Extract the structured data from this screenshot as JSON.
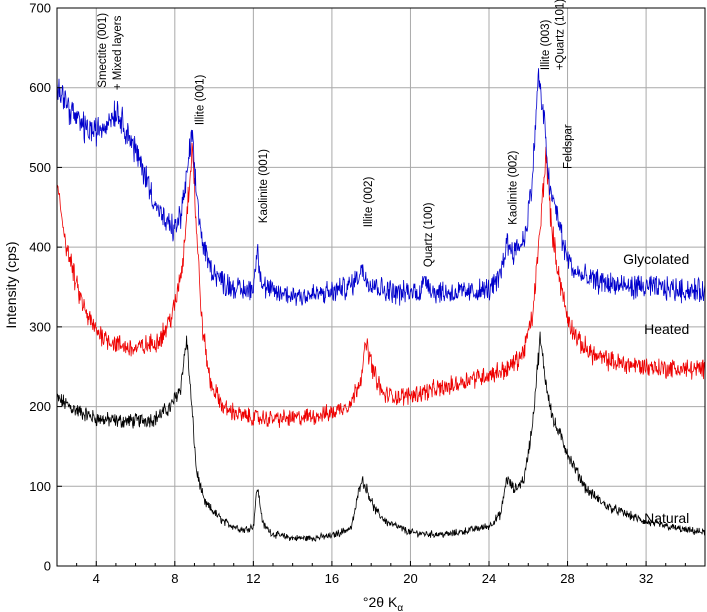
{
  "chart_data": {
    "type": "line",
    "title": "",
    "xlabel_main": "°2θ K",
    "xlabel_sub": "α",
    "ylabel": "Intensity (cps)",
    "xlim": [
      2,
      35
    ],
    "ylim": [
      0,
      700
    ],
    "xticks": [
      4,
      8,
      12,
      16,
      20,
      24,
      28,
      32
    ],
    "yticks": [
      0,
      100,
      200,
      300,
      400,
      500,
      600,
      700
    ],
    "grid": true,
    "series": [
      {
        "name": "Glycolated",
        "color": "#0000cc",
        "noise": 9,
        "points": [
          [
            2,
            610
          ],
          [
            2.5,
            580
          ],
          [
            3,
            560
          ],
          [
            3.5,
            548
          ],
          [
            4,
            545
          ],
          [
            4.5,
            555
          ],
          [
            5,
            572
          ],
          [
            5.4,
            555
          ],
          [
            6,
            520
          ],
          [
            6.5,
            490
          ],
          [
            7,
            455
          ],
          [
            7.5,
            430
          ],
          [
            8,
            422
          ],
          [
            8.3,
            440
          ],
          [
            8.6,
            485
          ],
          [
            8.85,
            540
          ],
          [
            9.1,
            470
          ],
          [
            9.4,
            405
          ],
          [
            9.8,
            375
          ],
          [
            10.5,
            355
          ],
          [
            11.5,
            345
          ],
          [
            12,
            350
          ],
          [
            12.2,
            398
          ],
          [
            12.45,
            352
          ],
          [
            13,
            343
          ],
          [
            14,
            340
          ],
          [
            15,
            340
          ],
          [
            16,
            343
          ],
          [
            16.5,
            348
          ],
          [
            17,
            352
          ],
          [
            17.5,
            372
          ],
          [
            17.8,
            360
          ],
          [
            18.5,
            348
          ],
          [
            19.5,
            342
          ],
          [
            20.5,
            345
          ],
          [
            20.8,
            362
          ],
          [
            21.1,
            345
          ],
          [
            22,
            343
          ],
          [
            23,
            343
          ],
          [
            24,
            347
          ],
          [
            24.5,
            358
          ],
          [
            24.9,
            405
          ],
          [
            25.3,
            395
          ],
          [
            25.8,
            410
          ],
          [
            26.2,
            480
          ],
          [
            26.5,
            615
          ],
          [
            26.8,
            560
          ],
          [
            27.1,
            470
          ],
          [
            27.5,
            440
          ],
          [
            27.8,
            400
          ],
          [
            28.3,
            370
          ],
          [
            29,
            360
          ],
          [
            30,
            355
          ],
          [
            31,
            350
          ],
          [
            32,
            350
          ],
          [
            33,
            348
          ],
          [
            34,
            346
          ],
          [
            35,
            345
          ]
        ]
      },
      {
        "name": "Heated",
        "color": "#ee0000",
        "noise": 9,
        "points": [
          [
            2,
            475
          ],
          [
            2.5,
            400
          ],
          [
            3,
            350
          ],
          [
            3.5,
            315
          ],
          [
            4,
            295
          ],
          [
            5,
            278
          ],
          [
            6,
            272
          ],
          [
            7,
            280
          ],
          [
            7.5,
            295
          ],
          [
            8,
            325
          ],
          [
            8.4,
            380
          ],
          [
            8.7,
            470
          ],
          [
            8.9,
            530
          ],
          [
            9.1,
            420
          ],
          [
            9.4,
            300
          ],
          [
            9.8,
            230
          ],
          [
            10.5,
            198
          ],
          [
            11.5,
            188
          ],
          [
            12.5,
            185
          ],
          [
            14,
            185
          ],
          [
            15,
            188
          ],
          [
            16,
            192
          ],
          [
            17,
            205
          ],
          [
            17.5,
            240
          ],
          [
            17.75,
            280
          ],
          [
            18.1,
            245
          ],
          [
            18.6,
            215
          ],
          [
            19.5,
            212
          ],
          [
            21,
            220
          ],
          [
            22,
            225
          ],
          [
            23,
            235
          ],
          [
            24,
            240
          ],
          [
            25,
            248
          ],
          [
            25.7,
            265
          ],
          [
            26.2,
            310
          ],
          [
            26.6,
            420
          ],
          [
            26.9,
            520
          ],
          [
            27.2,
            420
          ],
          [
            27.6,
            360
          ],
          [
            28,
            310
          ],
          [
            28.6,
            280
          ],
          [
            29.5,
            262
          ],
          [
            30.5,
            255
          ],
          [
            32,
            250
          ],
          [
            33,
            248
          ],
          [
            34,
            247
          ],
          [
            35,
            246
          ]
        ]
      },
      {
        "name": "Natural",
        "color": "#000000",
        "noise": 8,
        "points": [
          [
            2,
            210
          ],
          [
            3,
            195
          ],
          [
            4,
            185
          ],
          [
            5,
            182
          ],
          [
            6,
            182
          ],
          [
            7,
            185
          ],
          [
            7.8,
            200
          ],
          [
            8.3,
            225
          ],
          [
            8.6,
            285
          ],
          [
            8.8,
            220
          ],
          [
            9.1,
            120
          ],
          [
            9.5,
            80
          ],
          [
            10.5,
            55
          ],
          [
            11.5,
            45
          ],
          [
            12,
            50
          ],
          [
            12.2,
            100
          ],
          [
            12.5,
            52
          ],
          [
            13,
            40
          ],
          [
            14,
            35
          ],
          [
            15,
            35
          ],
          [
            16,
            38
          ],
          [
            17,
            48
          ],
          [
            17.5,
            110
          ],
          [
            17.8,
            95
          ],
          [
            18.2,
            70
          ],
          [
            18.8,
            55
          ],
          [
            20,
            42
          ],
          [
            21,
            40
          ],
          [
            22,
            40
          ],
          [
            23,
            45
          ],
          [
            24,
            50
          ],
          [
            24.6,
            65
          ],
          [
            24.9,
            110
          ],
          [
            25.3,
            95
          ],
          [
            25.8,
            110
          ],
          [
            26.2,
            175
          ],
          [
            26.6,
            285
          ],
          [
            26.9,
            230
          ],
          [
            27.3,
            180
          ],
          [
            27.7,
            160
          ],
          [
            28.2,
            130
          ],
          [
            29,
            95
          ],
          [
            30,
            75
          ],
          [
            31,
            65
          ],
          [
            32,
            55
          ],
          [
            33,
            50
          ],
          [
            34,
            45
          ],
          [
            35,
            42
          ]
        ]
      }
    ],
    "series_labels": [
      {
        "text": "Glycolated",
        "x": 34.2,
        "y": 385
      },
      {
        "text": "Heated",
        "x": 34.2,
        "y": 297
      },
      {
        "text": "Natural",
        "x": 34.2,
        "y": 60
      }
    ],
    "annotations": [
      {
        "text": "Smectite (001)",
        "x": 4.5,
        "y": 600
      },
      {
        "text": "+ Mixed layers",
        "x": 5.25,
        "y": 597
      },
      {
        "text": "Illite (001)",
        "x": 9.45,
        "y": 553
      },
      {
        "text": "Kaolinite (001)",
        "x": 12.7,
        "y": 430
      },
      {
        "text": "Illite (002)",
        "x": 18.05,
        "y": 425
      },
      {
        "text": "Quartz (100)",
        "x": 21.1,
        "y": 375
      },
      {
        "text": "Kaolinite (002)",
        "x": 25.4,
        "y": 428
      },
      {
        "text": "Illite (003)",
        "x": 27.05,
        "y": 622
      },
      {
        "text": "+Quartz (101)",
        "x": 27.8,
        "y": 622
      },
      {
        "text": "Feldspar",
        "x": 28.2,
        "y": 498
      }
    ]
  }
}
